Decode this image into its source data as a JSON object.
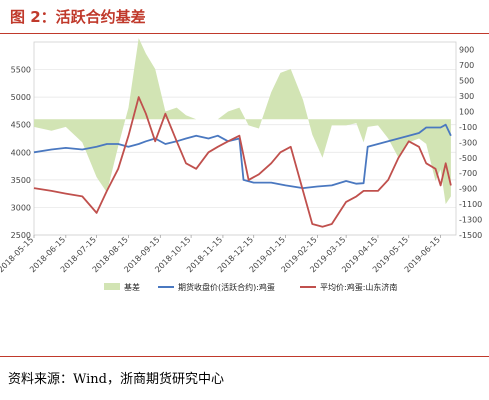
{
  "header": {
    "title": "图 2：活跃合约基差"
  },
  "footer": {
    "source": "资料来源：Wind，浙商期货研究中心"
  },
  "colors": {
    "basis": "#d2e4b4",
    "futures": "#4a78c0",
    "spot": "#c0504d",
    "accent": "#c0392b"
  },
  "chart_data": {
    "type": "line",
    "title": "图 2：活跃合约基差",
    "x_ticks": [
      "2018-05-15",
      "2018-06-15",
      "2018-07-15",
      "2018-08-15",
      "2018-09-15",
      "2018-10-15",
      "2018-11-15",
      "2018-12-15",
      "2019-01-15",
      "2019-02-15",
      "2019-03-15",
      "2019-04-15",
      "2019-05-15",
      "2019-06-15"
    ],
    "ylim_left": [
      2500,
      6000
    ],
    "yticks_left": [
      2500,
      3000,
      3500,
      4000,
      4500,
      5000,
      5500
    ],
    "ylim_right": [
      -1500,
      1000
    ],
    "yticks_right": [
      -1500,
      -1300,
      -1100,
      -900,
      -700,
      -500,
      -300,
      -100,
      100,
      300,
      500,
      700,
      900
    ],
    "legend": {
      "position": "bottom",
      "items": [
        "基差",
        "期货收盘价(活跃合约):鸡蛋",
        "平均价:鸡蛋:山东济南"
      ]
    },
    "series": [
      {
        "name": "基差",
        "type": "area",
        "axis": "right",
        "x": [
          "2018-05-15",
          "2018-06-01",
          "2018-06-15",
          "2018-07-01",
          "2018-07-15",
          "2018-07-25",
          "2018-08-05",
          "2018-08-15",
          "2018-08-25",
          "2018-09-01",
          "2018-09-10",
          "2018-09-20",
          "2018-10-01",
          "2018-10-10",
          "2018-10-20",
          "2018-11-01",
          "2018-11-10",
          "2018-11-20",
          "2018-12-01",
          "2018-12-10",
          "2018-12-20",
          "2019-01-01",
          "2019-01-10",
          "2019-01-20",
          "2019-02-01",
          "2019-02-10",
          "2019-02-20",
          "2019-03-01",
          "2019-03-15",
          "2019-03-25",
          "2019-04-01",
          "2019-04-05",
          "2019-04-15",
          "2019-04-25",
          "2019-05-05",
          "2019-05-15",
          "2019-05-25",
          "2019-06-01",
          "2019-06-10",
          "2019-06-15",
          "2019-06-20",
          "2019-06-25"
        ],
        "values": [
          -100,
          -150,
          -100,
          -300,
          -750,
          -950,
          -350,
          150,
          1050,
          850,
          650,
          100,
          150,
          50,
          0,
          0,
          0,
          100,
          150,
          -80,
          -120,
          350,
          600,
          650,
          250,
          -200,
          -500,
          -80,
          -80,
          -50,
          -300,
          -100,
          -80,
          -250,
          -500,
          -300,
          -250,
          -320,
          -800,
          -650,
          -1100,
          -1000
        ]
      },
      {
        "name": "期货收盘价(活跃合约):鸡蛋",
        "type": "line",
        "axis": "left",
        "x": [
          "2018-05-15",
          "2018-06-01",
          "2018-06-15",
          "2018-07-01",
          "2018-07-15",
          "2018-07-25",
          "2018-08-05",
          "2018-08-15",
          "2018-08-25",
          "2018-09-01",
          "2018-09-10",
          "2018-09-20",
          "2018-10-01",
          "2018-10-10",
          "2018-10-20",
          "2018-11-01",
          "2018-11-10",
          "2018-11-20",
          "2018-12-01",
          "2018-12-05",
          "2018-12-15",
          "2019-01-01",
          "2019-01-15",
          "2019-02-01",
          "2019-02-15",
          "2019-03-01",
          "2019-03-15",
          "2019-03-25",
          "2019-04-01",
          "2019-04-05",
          "2019-04-15",
          "2019-04-25",
          "2019-05-05",
          "2019-05-15",
          "2019-05-25",
          "2019-06-01",
          "2019-06-10",
          "2019-06-15",
          "2019-06-20",
          "2019-06-25"
        ],
        "values": [
          4000,
          4050,
          4080,
          4050,
          4100,
          4150,
          4150,
          4100,
          4150,
          4200,
          4250,
          4150,
          4200,
          4250,
          4300,
          4250,
          4300,
          4200,
          4250,
          3500,
          3450,
          3450,
          3400,
          3350,
          3380,
          3400,
          3480,
          3430,
          3440,
          4100,
          4150,
          4200,
          4250,
          4300,
          4350,
          4450,
          4450,
          4450,
          4500,
          4300
        ]
      },
      {
        "name": "平均价:鸡蛋:山东济南",
        "type": "line",
        "axis": "left",
        "x": [
          "2018-05-15",
          "2018-06-01",
          "2018-06-15",
          "2018-07-01",
          "2018-07-15",
          "2018-07-25",
          "2018-08-05",
          "2018-08-15",
          "2018-08-25",
          "2018-09-01",
          "2018-09-10",
          "2018-09-20",
          "2018-10-01",
          "2018-10-10",
          "2018-10-20",
          "2018-11-01",
          "2018-11-10",
          "2018-11-20",
          "2018-12-01",
          "2018-12-10",
          "2018-12-20",
          "2019-01-01",
          "2019-01-10",
          "2019-01-20",
          "2019-02-01",
          "2019-02-10",
          "2019-02-20",
          "2019-03-01",
          "2019-03-15",
          "2019-03-25",
          "2019-04-01",
          "2019-04-15",
          "2019-04-25",
          "2019-05-05",
          "2019-05-15",
          "2019-05-25",
          "2019-06-01",
          "2019-06-10",
          "2019-06-15",
          "2019-06-20",
          "2019-06-25"
        ],
        "values": [
          3350,
          3300,
          3250,
          3200,
          2900,
          3300,
          3700,
          4300,
          5000,
          4700,
          4200,
          4700,
          4200,
          3800,
          3700,
          4000,
          4100,
          4200,
          4300,
          3500,
          3600,
          3800,
          4000,
          4100,
          3300,
          2700,
          2650,
          2700,
          3100,
          3200,
          3300,
          3300,
          3500,
          3900,
          4200,
          4100,
          3800,
          3700,
          3400,
          3800,
          3400
        ]
      }
    ]
  }
}
